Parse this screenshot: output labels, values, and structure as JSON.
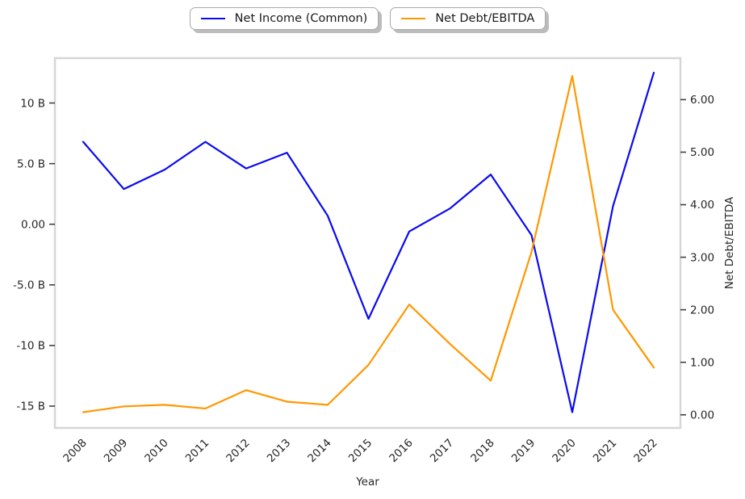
{
  "colors": {
    "blue_line": "#0a0af0",
    "orange_line": "#ff9800",
    "spine": "#d6d6d6",
    "tick_mark": "#404040",
    "text": "#262626",
    "legend_border": "#a9a9a9",
    "legend_shadow": "#bcbcbc",
    "background": "#ffffff"
  },
  "legend": {
    "items": [
      {
        "label": "Net Income (Common)",
        "color": "#0a0af0"
      },
      {
        "label": "Net Debt/EBITDA",
        "color": "#ff9800"
      }
    ]
  },
  "chart_data": {
    "type": "line",
    "title": "",
    "xlabel": "Year",
    "ylabel_right": "Net Debt/EBITDA",
    "grid": false,
    "legend_position": "top-center",
    "x_categories": [
      "2008",
      "2009",
      "2010",
      "2011",
      "2012",
      "2013",
      "2014",
      "2015",
      "2016",
      "2017",
      "2018",
      "2019",
      "2020",
      "2021",
      "2022"
    ],
    "series": [
      {
        "name": "Net Income (Common)",
        "axis": "left",
        "color": "#0a0af0",
        "values": [
          6.8,
          2.9,
          4.5,
          6.8,
          4.6,
          5.9,
          0.7,
          -7.8,
          -0.6,
          1.3,
          4.1,
          -0.9,
          -15.5,
          1.5,
          12.5
        ]
      },
      {
        "name": "Net Debt/EBITDA",
        "axis": "right",
        "color": "#ff9800",
        "values": [
          0.05,
          0.16,
          0.19,
          0.12,
          0.47,
          0.25,
          0.19,
          0.95,
          2.1,
          1.35,
          0.65,
          3.1,
          6.45,
          2.0,
          0.9
        ]
      }
    ],
    "left_axis": {
      "range": [
        -16.8,
        13.7
      ],
      "ticks": [
        10,
        5,
        0,
        -5,
        -10,
        -15
      ],
      "tick_labels": [
        "10 B",
        "5.0 B",
        "0.00",
        "-5.0 B",
        "-10 B",
        "-15 B"
      ]
    },
    "right_axis": {
      "range": [
        -0.25,
        6.79
      ],
      "ticks": [
        6,
        5,
        4,
        3,
        2,
        1,
        0
      ],
      "tick_labels": [
        "6.00",
        "5.00",
        "4.00",
        "3.00",
        "2.00",
        "1.00",
        "0.00"
      ]
    }
  }
}
